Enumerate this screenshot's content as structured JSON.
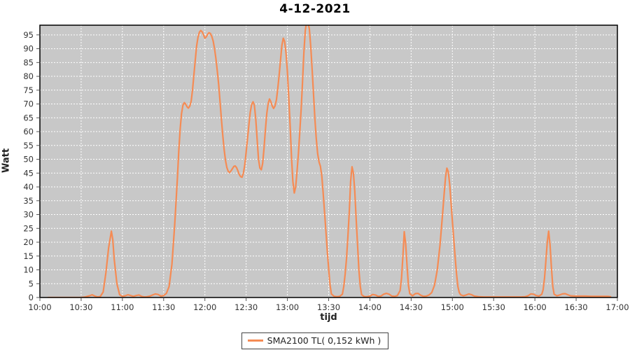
{
  "title": "4-12-2021",
  "legend": {
    "label": "SMA2100 TL( 0,152 kWh )",
    "swatch_color": "#F58B54"
  },
  "colors": {
    "series": "#F58B54",
    "plot_bg": "#C8C8C8",
    "grid": "#FFFFFF",
    "plot_border": "#000000",
    "tick_mark": "#555555",
    "tick_label": "#333333",
    "page_bg": "#FFFFFF"
  },
  "chart_data": {
    "type": "line",
    "title": "4-12-2021",
    "xlabel": "tijd",
    "ylabel": "Watt",
    "grid": true,
    "legend_position": "bottom-center",
    "x_ticks": [
      "10:00",
      "10:30",
      "11:00",
      "11:30",
      "12:00",
      "12:30",
      "13:00",
      "13:30",
      "14:00",
      "14:30",
      "15:00",
      "15:30",
      "16:00",
      "16:30",
      "17:00"
    ],
    "x_tick_minutes": [
      0,
      30,
      60,
      90,
      120,
      150,
      180,
      210,
      240,
      270,
      300,
      330,
      360,
      390,
      420
    ],
    "y_ticks": [
      0,
      5,
      10,
      15,
      20,
      25,
      30,
      35,
      40,
      45,
      50,
      55,
      60,
      65,
      70,
      75,
      80,
      85,
      90,
      95
    ],
    "xlim_minutes": [
      0,
      420
    ],
    "ylim": [
      0,
      98.5
    ],
    "series": [
      {
        "name": "SMA2100 TL( 0,152 kWh )",
        "color": "#F58B54",
        "points_format": "[minutes_after_10:00, watt]",
        "points": [
          [
            6,
            0
          ],
          [
            10,
            0
          ],
          [
            14,
            0
          ],
          [
            18,
            0
          ],
          [
            22,
            0
          ],
          [
            26,
            0
          ],
          [
            30,
            0
          ],
          [
            33,
            0.2
          ],
          [
            36,
            0.6
          ],
          [
            38,
            1
          ],
          [
            40,
            0.5
          ],
          [
            42,
            0.2
          ],
          [
            44,
            0.4
          ],
          [
            46,
            2
          ],
          [
            48,
            9
          ],
          [
            50,
            18
          ],
          [
            52,
            24
          ],
          [
            53,
            21
          ],
          [
            54,
            14
          ],
          [
            56,
            5
          ],
          [
            58,
            1
          ],
          [
            60,
            0.4
          ],
          [
            62,
            0.6
          ],
          [
            64,
            1
          ],
          [
            66,
            0.7
          ],
          [
            68,
            0.4
          ],
          [
            70,
            0.7
          ],
          [
            72,
            0.9
          ],
          [
            74,
            0.4
          ],
          [
            76,
            0.2
          ],
          [
            78,
            0.3
          ],
          [
            80,
            0.5
          ],
          [
            82,
            0.9
          ],
          [
            84,
            1.3
          ],
          [
            86,
            1.1
          ],
          [
            88,
            0.5
          ],
          [
            90,
            0.7
          ],
          [
            92,
            1.5
          ],
          [
            94,
            4
          ],
          [
            96,
            12
          ],
          [
            98,
            26
          ],
          [
            100,
            43
          ],
          [
            101,
            53
          ],
          [
            102,
            61
          ],
          [
            103,
            66.5
          ],
          [
            104,
            69.5
          ],
          [
            105,
            70.5
          ],
          [
            106,
            70
          ],
          [
            107,
            69
          ],
          [
            108,
            68.5
          ],
          [
            109,
            69.2
          ],
          [
            110,
            71
          ],
          [
            111,
            75
          ],
          [
            112,
            80.5
          ],
          [
            113,
            86
          ],
          [
            114,
            91
          ],
          [
            115,
            94.2
          ],
          [
            116,
            96
          ],
          [
            117,
            96.6
          ],
          [
            118,
            96.1
          ],
          [
            119,
            95
          ],
          [
            120,
            93.8
          ],
          [
            121,
            94.3
          ],
          [
            122,
            95.2
          ],
          [
            123,
            95.8
          ],
          [
            124,
            95.5
          ],
          [
            125,
            94.5
          ],
          [
            126,
            92.8
          ],
          [
            127,
            90
          ],
          [
            128,
            86.5
          ],
          [
            129,
            82
          ],
          [
            130,
            77
          ],
          [
            131,
            71
          ],
          [
            132,
            64.5
          ],
          [
            133,
            58.5
          ],
          [
            134,
            53.5
          ],
          [
            135,
            49.5
          ],
          [
            136,
            47
          ],
          [
            137,
            45.6
          ],
          [
            138,
            45.2
          ],
          [
            139,
            45.8
          ],
          [
            140,
            46.6
          ],
          [
            141,
            47.4
          ],
          [
            142,
            47.6
          ],
          [
            143,
            47
          ],
          [
            144,
            45.8
          ],
          [
            145,
            44.5
          ],
          [
            146,
            43.7
          ],
          [
            147,
            43.5
          ],
          [
            148,
            45
          ],
          [
            149,
            48
          ],
          [
            150,
            52.5
          ],
          [
            151,
            57.5
          ],
          [
            152,
            62.5
          ],
          [
            153,
            67
          ],
          [
            154,
            69.8
          ],
          [
            155,
            70.8
          ],
          [
            156,
            69.5
          ],
          [
            157,
            64.5
          ],
          [
            158,
            57
          ],
          [
            159,
            50
          ],
          [
            160,
            46.8
          ],
          [
            161,
            46.2
          ],
          [
            162,
            48.5
          ],
          [
            163,
            54
          ],
          [
            164,
            60.5
          ],
          [
            165,
            66.5
          ],
          [
            166,
            70.2
          ],
          [
            167,
            71.8
          ],
          [
            168,
            70.8
          ],
          [
            169,
            69.2
          ],
          [
            170,
            68.4
          ],
          [
            171,
            69.3
          ],
          [
            172,
            71.5
          ],
          [
            173,
            75.5
          ],
          [
            174,
            80.5
          ],
          [
            175,
            86
          ],
          [
            176,
            91.2
          ],
          [
            177,
            93.8
          ],
          [
            178,
            92.6
          ],
          [
            179,
            88.5
          ],
          [
            180,
            81.5
          ],
          [
            181,
            72.5
          ],
          [
            182,
            62
          ],
          [
            183,
            50.5
          ],
          [
            184,
            42
          ],
          [
            185,
            37.8
          ],
          [
            186,
            40
          ],
          [
            187,
            45.5
          ],
          [
            188,
            52
          ],
          [
            189,
            60
          ],
          [
            190,
            68
          ],
          [
            191,
            78
          ],
          [
            192,
            88.5
          ],
          [
            193,
            96.5
          ],
          [
            194,
            100
          ],
          [
            195,
            99.6
          ],
          [
            196,
            97
          ],
          [
            197,
            90.5
          ],
          [
            198,
            82.5
          ],
          [
            199,
            73.5
          ],
          [
            200,
            64.5
          ],
          [
            201,
            57.5
          ],
          [
            202,
            52
          ],
          [
            203,
            49
          ],
          [
            204,
            47.5
          ],
          [
            205,
            44
          ],
          [
            206,
            38
          ],
          [
            207,
            31
          ],
          [
            208,
            24
          ],
          [
            209,
            17
          ],
          [
            210,
            10.5
          ],
          [
            211,
            4.5
          ],
          [
            212,
            1.3
          ],
          [
            214,
            0.4
          ],
          [
            216,
            0.3
          ],
          [
            218,
            0.4
          ],
          [
            220,
            1.2
          ],
          [
            221,
            4
          ],
          [
            222,
            8.5
          ],
          [
            223,
            14
          ],
          [
            224,
            22
          ],
          [
            225,
            31
          ],
          [
            226,
            42
          ],
          [
            227,
            47.3
          ],
          [
            228,
            45
          ],
          [
            229,
            38.5
          ],
          [
            230,
            28.5
          ],
          [
            231,
            19
          ],
          [
            232,
            10
          ],
          [
            233,
            4
          ],
          [
            234,
            1
          ],
          [
            236,
            0.3
          ],
          [
            238,
            0.3
          ],
          [
            240,
            0.5
          ],
          [
            242,
            1.1
          ],
          [
            244,
            0.9
          ],
          [
            246,
            0.4
          ],
          [
            248,
            0.5
          ],
          [
            250,
            1.2
          ],
          [
            252,
            1.5
          ],
          [
            254,
            1.2
          ],
          [
            256,
            0.5
          ],
          [
            258,
            0.4
          ],
          [
            260,
            0.7
          ],
          [
            262,
            2.5
          ],
          [
            263,
            7
          ],
          [
            264,
            15
          ],
          [
            265,
            23.8
          ],
          [
            266,
            19.5
          ],
          [
            267,
            11.5
          ],
          [
            268,
            4.5
          ],
          [
            269,
            1.4
          ],
          [
            271,
            0.6
          ],
          [
            273,
            1.4
          ],
          [
            275,
            1.5
          ],
          [
            277,
            0.8
          ],
          [
            279,
            0.4
          ],
          [
            281,
            0.5
          ],
          [
            283,
            0.9
          ],
          [
            285,
            1.8
          ],
          [
            287,
            4.5
          ],
          [
            289,
            10
          ],
          [
            291,
            19
          ],
          [
            293,
            31
          ],
          [
            294,
            37.5
          ],
          [
            295,
            43.5
          ],
          [
            296,
            46.8
          ],
          [
            297,
            45.5
          ],
          [
            298,
            41
          ],
          [
            299,
            34.5
          ],
          [
            300,
            27.5
          ],
          [
            301,
            21
          ],
          [
            302,
            14.5
          ],
          [
            303,
            8.5
          ],
          [
            304,
            4
          ],
          [
            305,
            1.8
          ],
          [
            306,
            1
          ],
          [
            308,
            0.6
          ],
          [
            310,
            0.9
          ],
          [
            312,
            1.3
          ],
          [
            314,
            1
          ],
          [
            316,
            0.5
          ],
          [
            319,
            0.3
          ],
          [
            323,
            0.2
          ],
          [
            327,
            0.2
          ],
          [
            331,
            0.2
          ],
          [
            336,
            0.2
          ],
          [
            341,
            0.2
          ],
          [
            346,
            0.2
          ],
          [
            350,
            0.2
          ],
          [
            353,
            0.3
          ],
          [
            355,
            0.6
          ],
          [
            357,
            1.3
          ],
          [
            359,
            1.2
          ],
          [
            361,
            0.7
          ],
          [
            363,
            0.5
          ],
          [
            365,
            1.2
          ],
          [
            366,
            2.8
          ],
          [
            367,
            7
          ],
          [
            368,
            13.5
          ],
          [
            369,
            20
          ],
          [
            370,
            24
          ],
          [
            371,
            19
          ],
          [
            372,
            11
          ],
          [
            373,
            4
          ],
          [
            374,
            1.2
          ],
          [
            376,
            0.6
          ],
          [
            378,
            0.9
          ],
          [
            380,
            1.3
          ],
          [
            382,
            1.4
          ],
          [
            384,
            1
          ],
          [
            386,
            0.6
          ],
          [
            389,
            0.5
          ],
          [
            393,
            0.5
          ],
          [
            397,
            0.5
          ],
          [
            401,
            0.4
          ],
          [
            405,
            0.4
          ],
          [
            409,
            0.4
          ],
          [
            413,
            0.4
          ],
          [
            415,
            0.3
          ]
        ]
      }
    ]
  }
}
